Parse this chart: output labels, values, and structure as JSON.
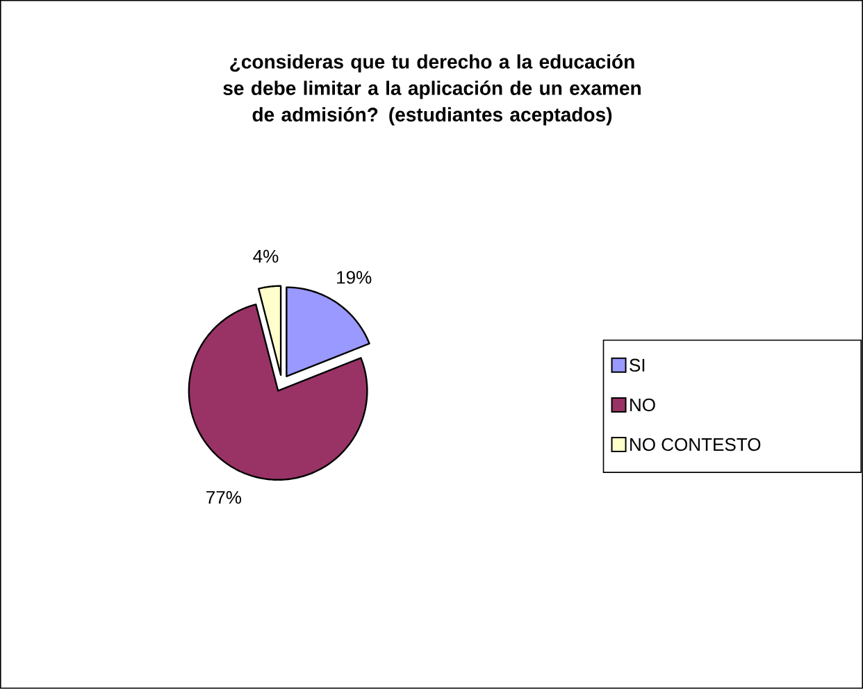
{
  "chart_data": {
    "type": "pie",
    "title": "¿consideras que tu derecho a la educación se debe limitar a la aplicación de un examen de admisión? (estudiantes aceptados)",
    "categories": [
      "SI",
      "NO",
      "NO CONTESTO"
    ],
    "values": [
      19,
      77,
      4
    ],
    "colors": [
      "#9999ff",
      "#993366",
      "#ffffcc"
    ],
    "value_labels": [
      "19%",
      "77%",
      "4%"
    ],
    "legend": "right"
  }
}
